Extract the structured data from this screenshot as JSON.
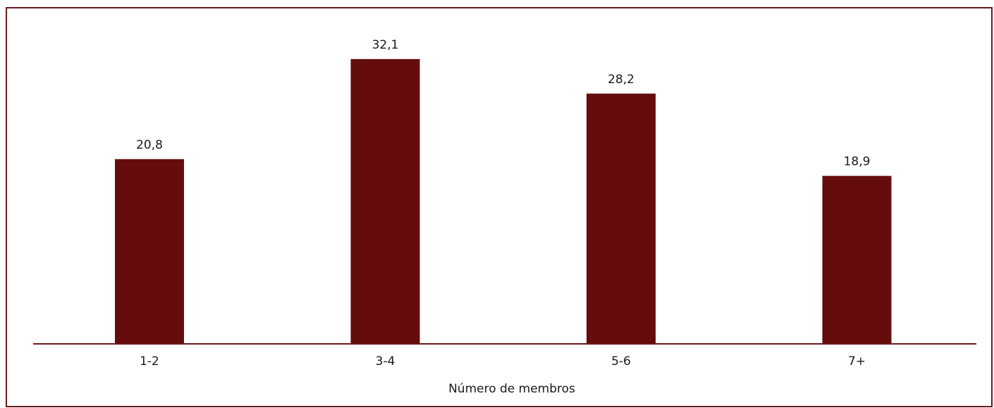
{
  "chart_data": {
    "type": "bar",
    "title": "",
    "xlabel": "Número de membros",
    "ylabel": "",
    "categories": [
      "1-2",
      "3-4",
      "5-6",
      "7+"
    ],
    "values": [
      20.8,
      32.1,
      28.2,
      18.9
    ],
    "value_labels": [
      "20,8",
      "32,1",
      "28,2",
      "18,9"
    ],
    "ylim": [
      0,
      35
    ],
    "grid": false,
    "legend": "none",
    "bar_color": "#650C0C",
    "frame_color": "#6B1A1A"
  }
}
